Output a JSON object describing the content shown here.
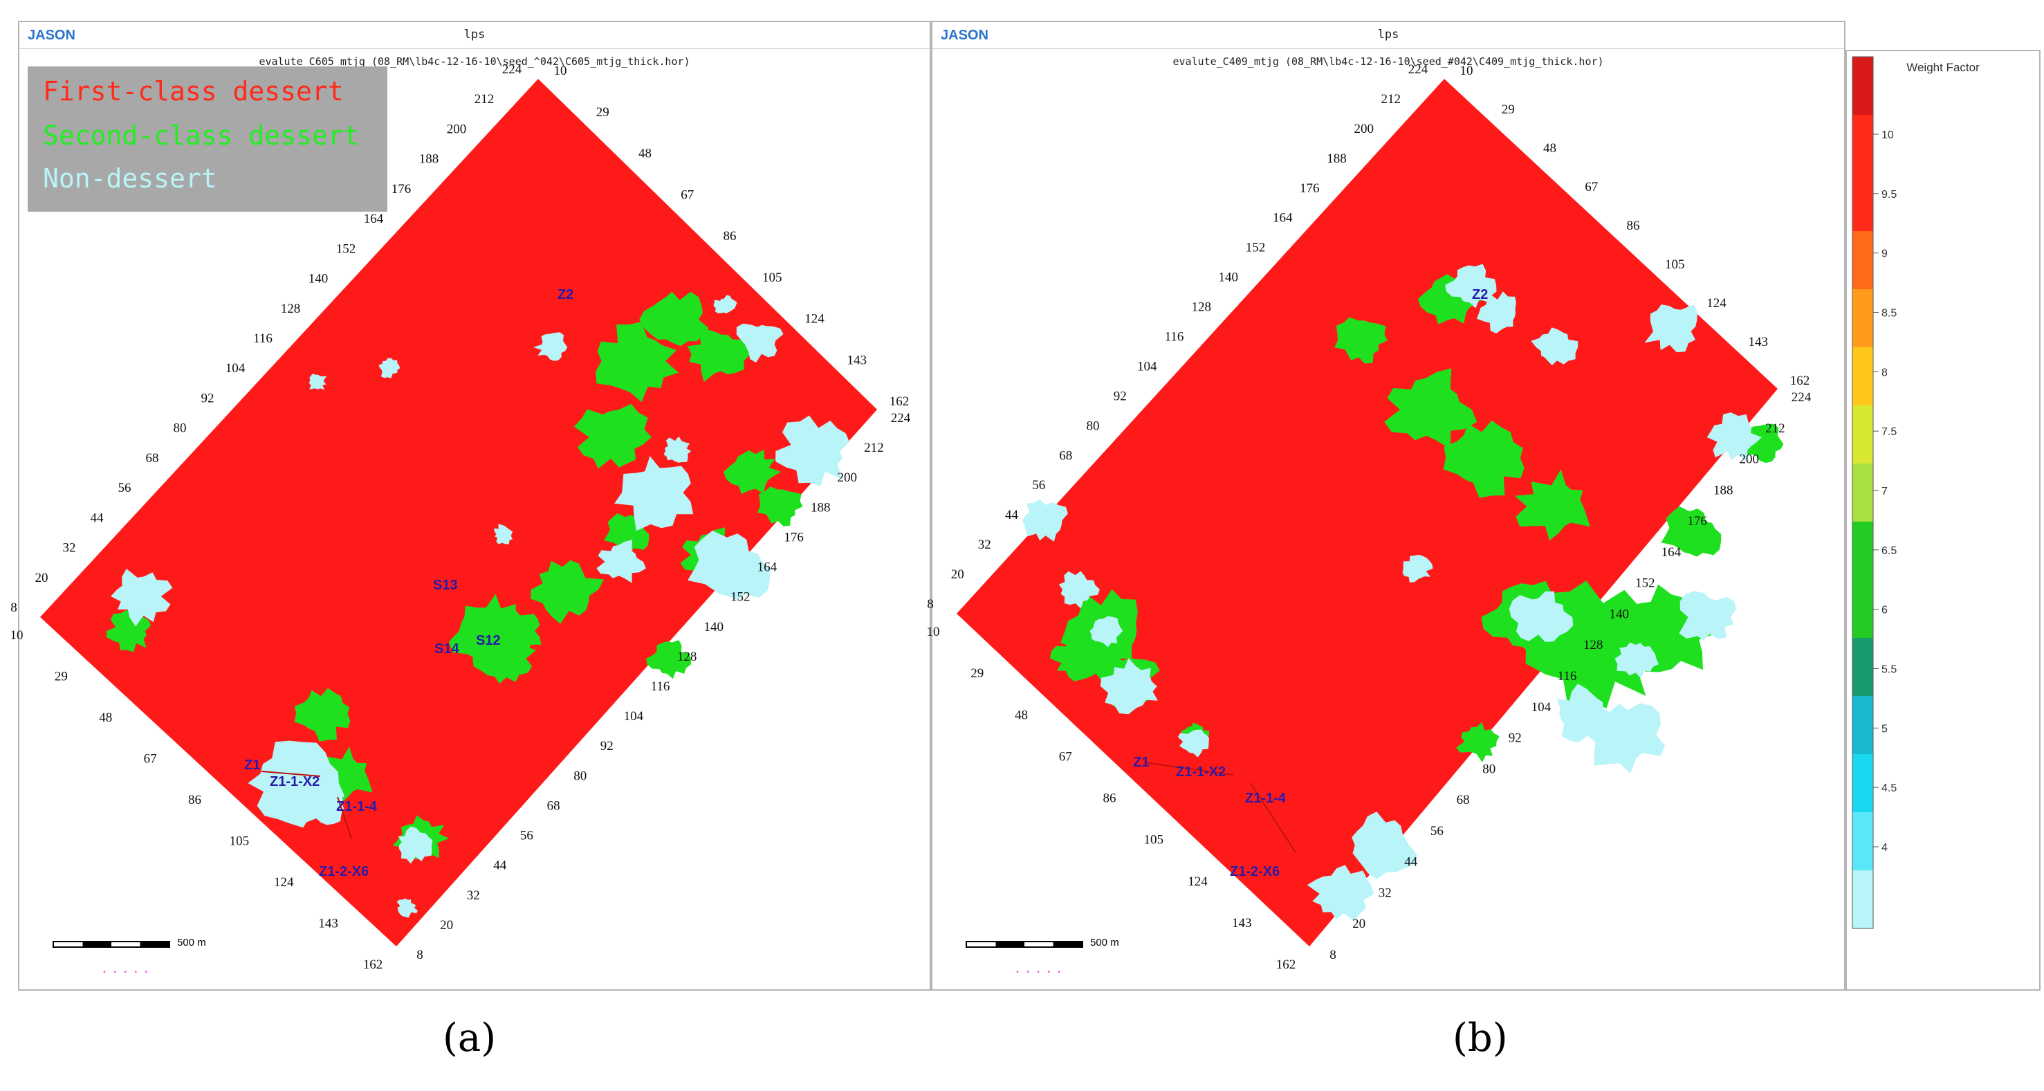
{
  "panel_a": {
    "brand": "JASON",
    "top_title": "lps",
    "subtitle": "evalute_C605_mtjg (08_RM\\lb4c-12-16-10\\seed_^042\\C605_mtjg_thick.hor)",
    "legend": [
      {
        "label": "First-class dessert",
        "color": "#ff2a1a"
      },
      {
        "label": "Second-class dessert",
        "color": "#22ee22"
      },
      {
        "label": "Non-dessert",
        "color": "#b8f4f8"
      }
    ],
    "wells": [
      "Z2",
      "S13",
      "S12",
      "S14",
      "Z1",
      "Z1-1-X2",
      "Z1-1-4",
      "Z1-2-X6"
    ],
    "scale_label": "500 m",
    "caption": "(a)"
  },
  "panel_b": {
    "brand": "JASON",
    "top_title": "lps",
    "subtitle": "evalute_C409_mtjg (08_RM\\lb4c-12-16-10\\seed_#042\\C409_mtjg_thick.hor)",
    "wells": [
      "Z2",
      "Z1",
      "Z1-1-X2",
      "Z1-1-4",
      "Z1-2-X6"
    ],
    "scale_label": "500 m",
    "caption": "(b)"
  },
  "grid_labels": {
    "upper_left": [
      "224",
      "212",
      "200",
      "188",
      "176",
      "164",
      "152",
      "140",
      "128",
      "116",
      "104",
      "92",
      "80",
      "68",
      "56",
      "44",
      "32",
      "20",
      "8"
    ],
    "upper_right": [
      "10",
      "29",
      "48",
      "67",
      "86",
      "105",
      "124",
      "143",
      "162"
    ],
    "lower_left": [
      "10",
      "29",
      "48",
      "67",
      "86",
      "105",
      "124",
      "143",
      "162"
    ],
    "lower_right": [
      "224",
      "212",
      "200",
      "188",
      "176",
      "164",
      "152",
      "140",
      "128",
      "116",
      "104",
      "92",
      "80",
      "68",
      "56",
      "44",
      "32",
      "20",
      "8"
    ]
  },
  "colorbar": {
    "title": "Weight Factor",
    "ticks": [
      "10",
      "9.5",
      "9",
      "8.5",
      "8",
      "7.5",
      "7",
      "6.5",
      "6",
      "5.5",
      "5",
      "4.5",
      "4"
    ],
    "colors": [
      "#d81a1a",
      "#ff2a1a",
      "#ff2a1a",
      "#ff6a1a",
      "#ff9a1a",
      "#ffc71a",
      "#d8e830",
      "#a8e040",
      "#22cc22",
      "#22cc22",
      "#1a9a70",
      "#1ab8d0",
      "#1ad8f0",
      "#58e8f8",
      "#b8f4f8"
    ]
  }
}
